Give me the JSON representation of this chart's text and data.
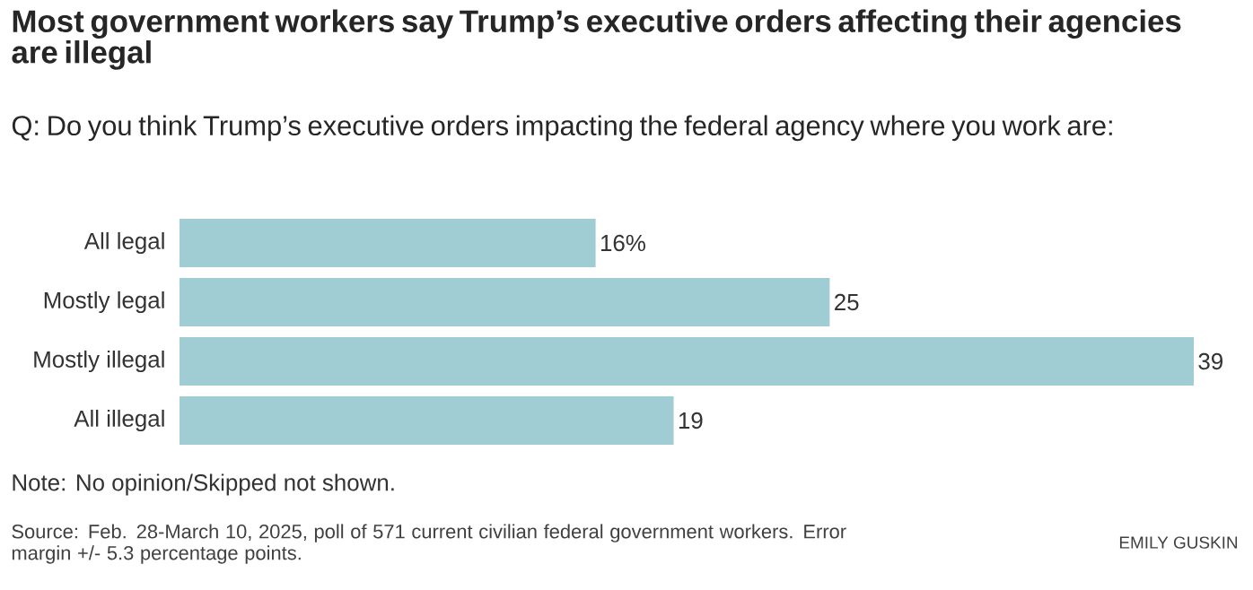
{
  "chart_data": {
    "type": "bar",
    "orientation": "horizontal",
    "title": "Most government workers say Trump’s executive orders affecting their agencies are illegal",
    "subtitle": "Q: Do you think Trump’s executive orders impacting the federal agency where you work are:",
    "categories": [
      "All legal",
      "Mostly legal",
      "Mostly illegal",
      "All illegal"
    ],
    "values": [
      16,
      25,
      39,
      19
    ],
    "color": "#a0ccd3",
    "value_labels": [
      "16%",
      "25",
      "39",
      "19"
    ],
    "annotations": [
      "Note: No opinion/Skipped not shown.",
      "Source: Feb. 28-March 10, 2025, poll of 571 current civilian federal government workers. Error margin +/- 5.3 percentage points.",
      "EMILY GUSKIN"
    ]
  }
}
